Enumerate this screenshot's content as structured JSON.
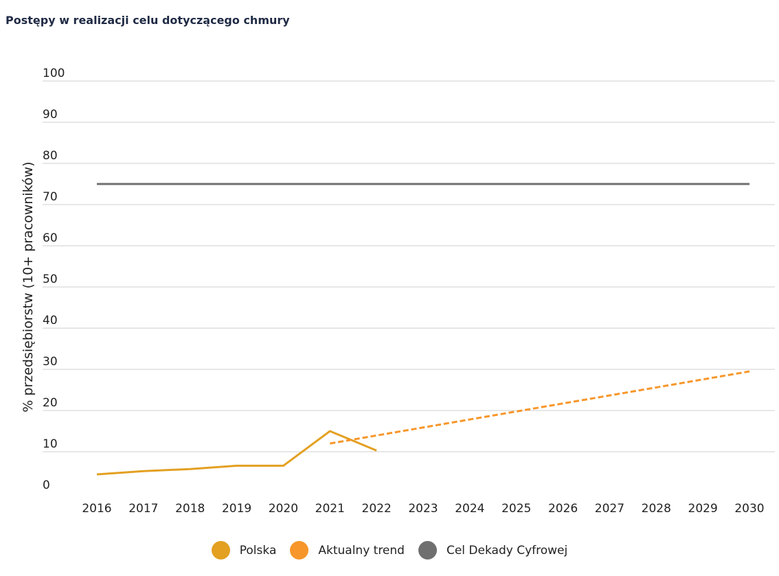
{
  "title": "Postępy w realizacji celu dotyczącego chmury",
  "chart_data": {
    "type": "line",
    "ylabel": "% przedsiębiorstw (10+ pracowników)",
    "xlabel": "",
    "x": [
      2016,
      2017,
      2018,
      2019,
      2020,
      2021,
      2022,
      2023,
      2024,
      2025,
      2026,
      2027,
      2028,
      2029,
      2030
    ],
    "ylim": [
      0,
      100
    ],
    "yticks": [
      0,
      10,
      20,
      30,
      40,
      50,
      60,
      70,
      80,
      90,
      100
    ],
    "grid": true,
    "legend_position": "bottom",
    "series": [
      {
        "name": "Polska",
        "color": "#E3A021",
        "style": "solid",
        "points": [
          [
            2016,
            4.5
          ],
          [
            2017,
            5.3
          ],
          [
            2018,
            5.8
          ],
          [
            2019,
            6.6
          ],
          [
            2020,
            6.6
          ],
          [
            2021,
            15.0
          ],
          [
            2022,
            10.3
          ]
        ]
      },
      {
        "name": "Aktualny trend",
        "color": "#F7962A",
        "style": "dashed",
        "points": [
          [
            2021,
            12.0
          ],
          [
            2030,
            29.5
          ]
        ]
      },
      {
        "name": "Cel Dekady Cyfrowej",
        "color": "#6F6F6F",
        "style": "solid",
        "points": [
          [
            2016,
            75
          ],
          [
            2030,
            75
          ]
        ]
      }
    ]
  }
}
